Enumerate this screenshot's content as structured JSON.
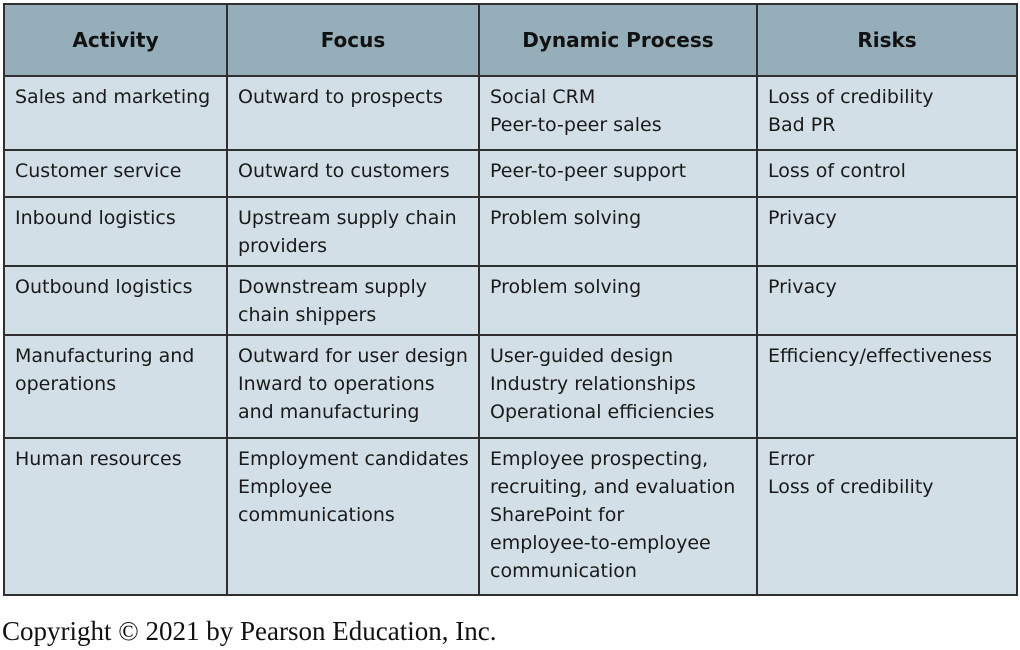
{
  "table": {
    "headers": [
      "Activity",
      "Focus",
      "Dynamic Process",
      "Risks"
    ],
    "rows": [
      {
        "activity": [
          "Sales and marketing"
        ],
        "focus": [
          "Outward to prospects"
        ],
        "process": [
          "Social CRM",
          "Peer-to-peer sales"
        ],
        "risks": [
          "Loss of credibility",
          "Bad PR"
        ]
      },
      {
        "activity": [
          "Customer service"
        ],
        "focus": [
          "Outward to customers"
        ],
        "process": [
          "Peer-to-peer support"
        ],
        "risks": [
          "Loss of control"
        ]
      },
      {
        "activity": [
          "Inbound logistics"
        ],
        "focus": [
          "Upstream supply chain",
          "providers"
        ],
        "process": [
          "Problem solving"
        ],
        "risks": [
          "Privacy"
        ]
      },
      {
        "activity": [
          "Outbound logistics"
        ],
        "focus": [
          "Downstream supply",
          "chain shippers"
        ],
        "process": [
          "Problem solving"
        ],
        "risks": [
          "Privacy"
        ]
      },
      {
        "activity": [
          "Manufacturing and",
          "operations"
        ],
        "focus": [
          "Outward for user design",
          "Inward to operations",
          "and manufacturing"
        ],
        "process": [
          "User-guided design",
          "Industry relationships",
          "Operational efficiencies"
        ],
        "risks": [
          "Efficiency/effectiveness"
        ]
      },
      {
        "activity": [
          "Human resources"
        ],
        "focus": [
          "Employment candidates",
          "Employee",
          "communications"
        ],
        "process": [
          "Employee prospecting,",
          "recruiting, and evaluation",
          "SharePoint for",
          "employee-to-employee",
          "communication"
        ],
        "risks": [
          "Error",
          "Loss of credibility"
        ]
      }
    ]
  },
  "copyright": "Copyright © 2021 by Pearson Education, Inc."
}
